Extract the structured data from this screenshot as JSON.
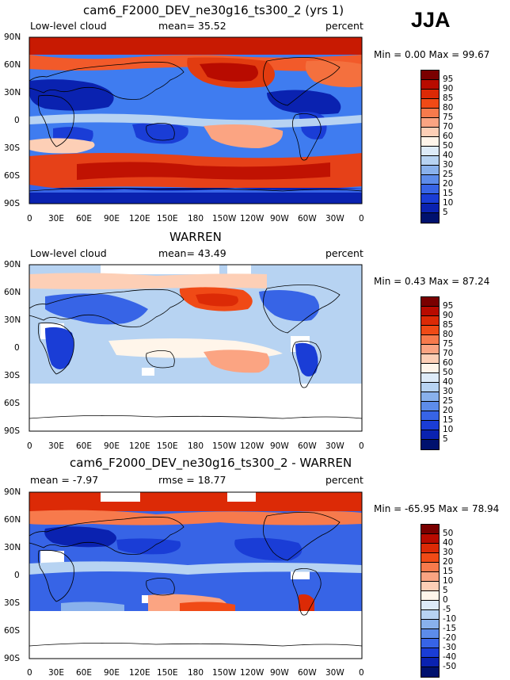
{
  "season": "JJA",
  "panels": [
    {
      "title": "cam6_F2000_DEV_ne30g16_ts300_2 (yrs 1)",
      "left": "Low-level cloud",
      "center": "mean=  35.52",
      "right": "percent",
      "minmax": "Min =    0.00 Max =   99.67",
      "colorbar": {
        "labels": [
          "95",
          "90",
          "85",
          "80",
          "75",
          "70",
          "60",
          "50",
          "40",
          "30",
          "25",
          "20",
          "15",
          "10",
          "5"
        ],
        "colors": [
          "#7a0000",
          "#b80b00",
          "#dc2a06",
          "#f04a16",
          "#f77a4c",
          "#fba482",
          "#fdcfb6",
          "#fff5ea",
          "#ddebf8",
          "#b7d3f2",
          "#89b1ec",
          "#5d8cea",
          "#3764e6",
          "#1a3dd6",
          "#0a22b0",
          "#00116e"
        ]
      },
      "lat_labels": [
        "90N",
        "60N",
        "30N",
        "0",
        "30S",
        "60S",
        "90S"
      ],
      "lon_labels": [
        "0",
        "30E",
        "60E",
        "90E",
        "120E",
        "150E",
        "180",
        "150W",
        "120W",
        "90W",
        "60W",
        "30W",
        "0"
      ]
    },
    {
      "title": "WARREN",
      "left": "Low-level cloud",
      "center": "mean=  43.49",
      "right": "percent",
      "minmax": "Min =    0.43 Max =   87.24",
      "colorbar": {
        "labels": [
          "95",
          "90",
          "85",
          "80",
          "75",
          "70",
          "60",
          "50",
          "40",
          "30",
          "25",
          "20",
          "15",
          "10",
          "5"
        ],
        "colors": [
          "#7a0000",
          "#b80b00",
          "#dc2a06",
          "#f04a16",
          "#f77a4c",
          "#fba482",
          "#fdcfb6",
          "#fff5ea",
          "#ddebf8",
          "#b7d3f2",
          "#89b1ec",
          "#5d8cea",
          "#3764e6",
          "#1a3dd6",
          "#0a22b0",
          "#00116e"
        ]
      },
      "lat_labels": [
        "90N",
        "60N",
        "30N",
        "0",
        "30S",
        "60S",
        "90S"
      ],
      "lon_labels": [
        "0",
        "30E",
        "60E",
        "90E",
        "120E",
        "150E",
        "180",
        "150W",
        "120W",
        "90W",
        "60W",
        "30W",
        "0"
      ]
    },
    {
      "title": "cam6_F2000_DEV_ne30g16_ts300_2 - WARREN",
      "left": "mean =   -7.97",
      "center": "rmse =   18.77",
      "right": "percent",
      "minmax": "Min = -65.95 Max =   78.94",
      "colorbar": {
        "labels": [
          "50",
          "40",
          "30",
          "20",
          "15",
          "10",
          "5",
          "0",
          "-5",
          "-10",
          "-15",
          "-20",
          "-30",
          "-40",
          "-50"
        ],
        "colors": [
          "#7a0000",
          "#b80b00",
          "#dc2a06",
          "#f04a16",
          "#f77a4c",
          "#fba482",
          "#fdcfb6",
          "#fff5ea",
          "#ddebf8",
          "#b7d3f2",
          "#89b1ec",
          "#5d8cea",
          "#3764e6",
          "#1a3dd6",
          "#0a22b0",
          "#00116e"
        ]
      },
      "lat_labels": [
        "90N",
        "60N",
        "30N",
        "0",
        "30S",
        "60S",
        "90S"
      ],
      "lon_labels": [
        "0",
        "30E",
        "60E",
        "90E",
        "120E",
        "150E",
        "180",
        "150W",
        "120W",
        "90W",
        "60W",
        "30W",
        "0"
      ]
    }
  ]
}
